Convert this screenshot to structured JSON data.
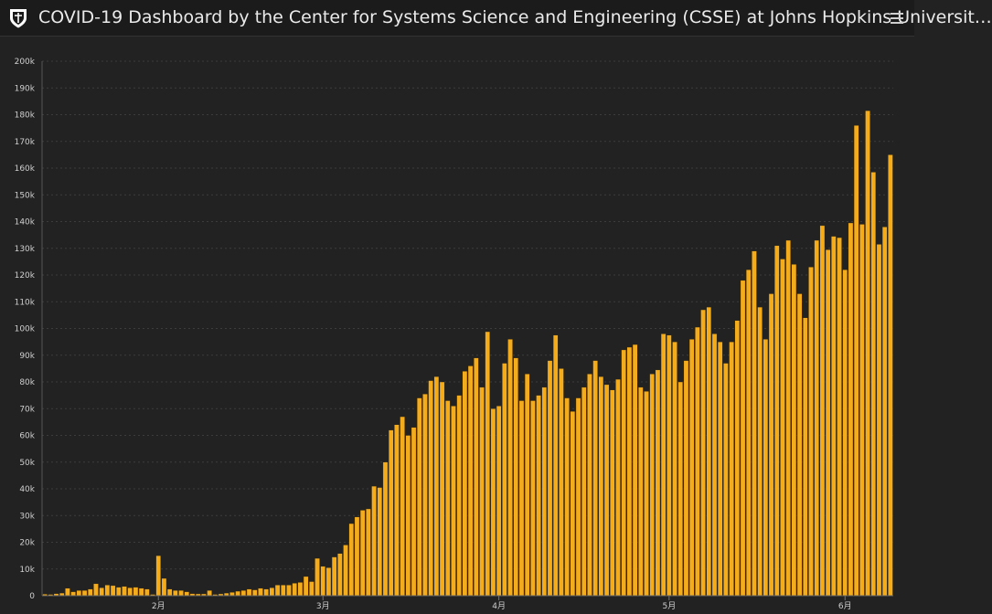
{
  "header": {
    "title": "COVID-19 Dashboard by the Center for Systems Science and Engineering (CSSE) at Johns Hopkins Universit…",
    "logo_icon": "university-shield-icon",
    "menu_icon": "hamburger-menu-icon"
  },
  "colors": {
    "background": "#222222",
    "bar": "#f4ab1c",
    "bar_edge": "#2a2210",
    "grid": "#3c3c3c",
    "text": "#cfcfcf"
  },
  "chart_data": {
    "type": "bar",
    "title": "",
    "xlabel": "",
    "ylabel": "",
    "ylim": [
      0,
      200000
    ],
    "yticks": [
      "0",
      "10k",
      "20k",
      "30k",
      "40k",
      "50k",
      "60k",
      "70k",
      "80k",
      "90k",
      "100k",
      "110k",
      "120k",
      "130k",
      "140k",
      "150k",
      "160k",
      "170k",
      "180k",
      "190k",
      "200k"
    ],
    "xticks": [
      {
        "label": "2月",
        "index": 20
      },
      {
        "label": "3月",
        "index": 49
      },
      {
        "label": "4月",
        "index": 80
      },
      {
        "label": "5月",
        "index": 110
      },
      {
        "label": "6月",
        "index": 141
      }
    ],
    "grid": true,
    "legend": "none",
    "values": [
      600,
      500,
      800,
      1000,
      2800,
      1500,
      2000,
      2000,
      2500,
      4500,
      3000,
      4000,
      3800,
      3200,
      3500,
      3000,
      3200,
      2800,
      2500,
      500,
      15000,
      6500,
      2500,
      2000,
      2000,
      1500,
      800,
      700,
      700,
      2000,
      500,
      700,
      1000,
      1300,
      1700,
      2000,
      2500,
      2200,
      2800,
      2500,
      3000,
      4000,
      4000,
      4000,
      4700,
      5000,
      7200,
      5300,
      14000,
      11000,
      10500,
      14500,
      15800,
      19000,
      27000,
      29500,
      32000,
      32500,
      41000,
      40500,
      50000,
      62000,
      64000,
      67000,
      60000,
      63000,
      74000,
      75500,
      80500,
      82000,
      80000,
      73000,
      71000,
      75000,
      84000,
      86000,
      89000,
      78000,
      98800,
      70000,
      71000,
      87000,
      96000,
      89000,
      73000,
      83000,
      73000,
      75000,
      78000,
      88000,
      97500,
      85000,
      74000,
      69000,
      74000,
      78000,
      83000,
      88000,
      82000,
      79000,
      77000,
      81000,
      92000,
      93000,
      94000,
      78000,
      76500,
      83000,
      84500,
      98000,
      97500,
      95000,
      80000,
      88000,
      96000,
      100500,
      107000,
      108000,
      98000,
      95000,
      87000,
      95000,
      103000,
      118000,
      122000,
      129000,
      108000,
      96000,
      113000,
      131000,
      126000,
      133000,
      124000,
      113000,
      104000,
      123000,
      133000,
      138500,
      129500,
      134500,
      134000,
      122000,
      139500,
      176000,
      139000,
      181500,
      158500,
      131500,
      138000,
      165000
    ]
  }
}
